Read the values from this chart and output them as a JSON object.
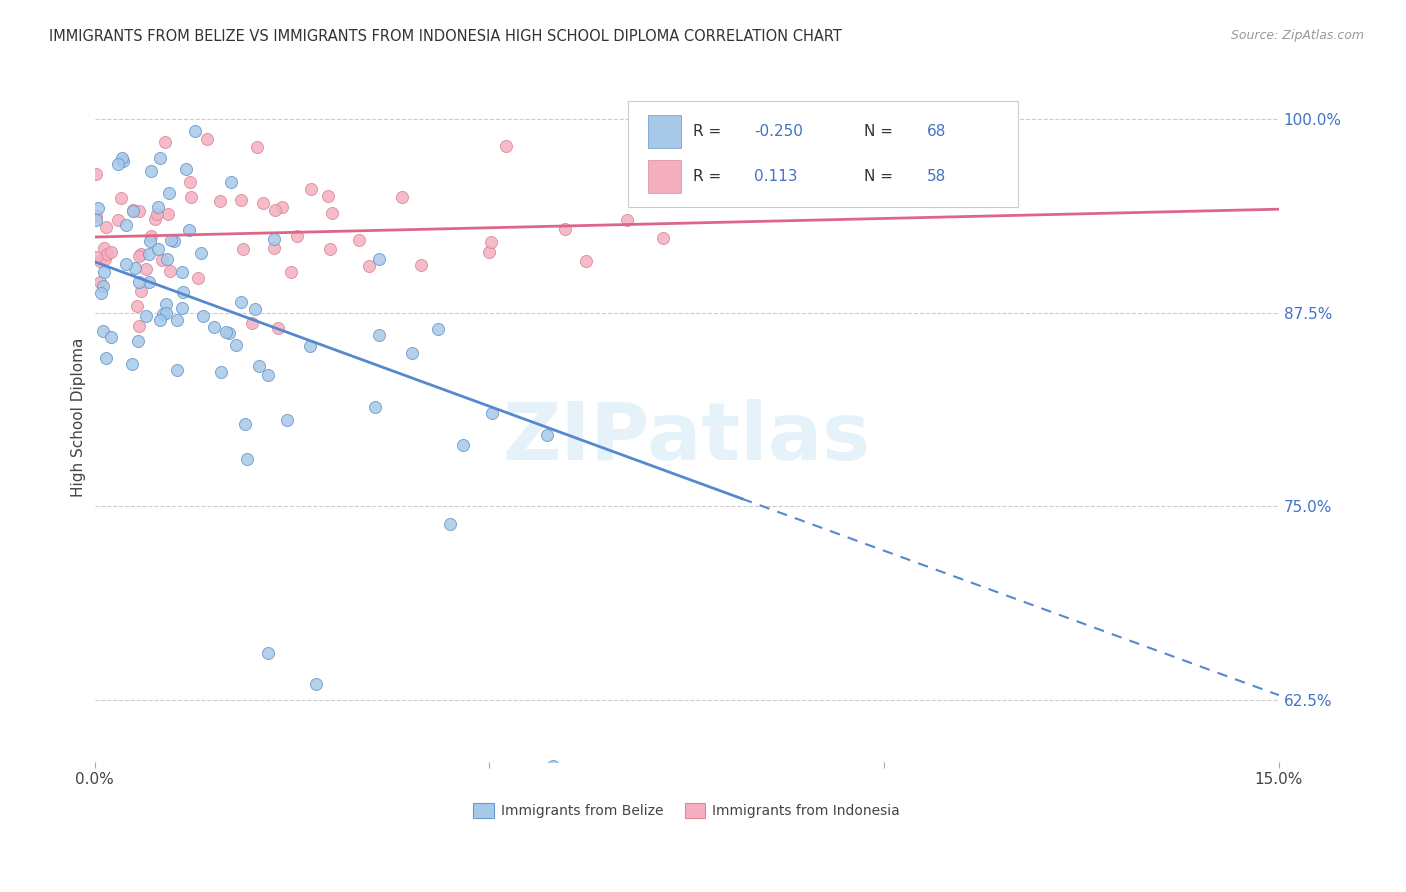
{
  "title": "IMMIGRANTS FROM BELIZE VS IMMIGRANTS FROM INDONESIA HIGH SCHOOL DIPLOMA CORRELATION CHART",
  "source": "Source: ZipAtlas.com",
  "ylabel": "High School Diploma",
  "xmin": 0.0,
  "xmax": 0.15,
  "ymin": 0.585,
  "ymax": 1.03,
  "belize_color": "#a8c8e8",
  "belize_edge_color": "#6699cc",
  "indonesia_color": "#f4b0c0",
  "indonesia_edge_color": "#dd8899",
  "belize_R": -0.25,
  "belize_N": 68,
  "indonesia_R": 0.113,
  "indonesia_N": 58,
  "belize_line_color": "#5588cc",
  "indonesia_line_color": "#dd6688",
  "watermark": "ZIPatlas",
  "ytick_values": [
    0.625,
    0.75,
    0.875,
    1.0
  ],
  "ytick_labels": [
    "62.5%",
    "75.0%",
    "87.5%",
    "100.0%"
  ],
  "legend_box_color": "#4472c4",
  "legend_text_color": "#4472c4",
  "legend_label_color": "#333333"
}
